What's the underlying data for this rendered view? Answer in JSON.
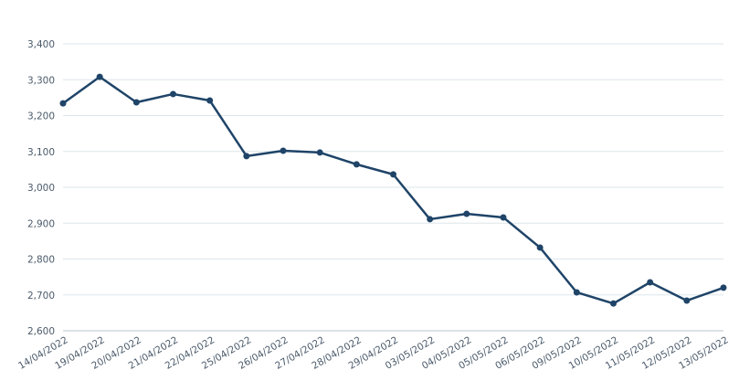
{
  "chart_data": {
    "type": "line",
    "categories": [
      "14/04/2022",
      "19/04/2022",
      "20/04/2022",
      "21/04/2022",
      "22/04/2022",
      "25/04/2022",
      "26/04/2022",
      "27/04/2022",
      "28/04/2022",
      "29/04/2022",
      "03/05/2022",
      "04/05/2022",
      "05/05/2022",
      "06/05/2022",
      "09/05/2022",
      "10/05/2022",
      "11/05/2022",
      "12/05/2022",
      "13/05/2022"
    ],
    "series": [
      {
        "color": "#1f4468",
        "values": [
          3234,
          3308,
          3237,
          3260,
          3242,
          3087,
          3102,
          3097,
          3064,
          3036,
          2911,
          2926,
          2916,
          2832,
          2707,
          2676,
          2735,
          2684,
          2720
        ]
      }
    ],
    "ylim": [
      2600,
      3400
    ],
    "yticks": [
      {
        "value": 2600,
        "label": "2,600"
      },
      {
        "value": 2700,
        "label": "2,700"
      },
      {
        "value": 2800,
        "label": "2,800"
      },
      {
        "value": 2900,
        "label": "2,900"
      },
      {
        "value": 3000,
        "label": "3,000"
      },
      {
        "value": 3100,
        "label": "3,100"
      },
      {
        "value": 3200,
        "label": "3,200"
      },
      {
        "value": 3300,
        "label": "3,300"
      },
      {
        "value": 3400,
        "label": "3,400"
      }
    ],
    "grid": true
  }
}
